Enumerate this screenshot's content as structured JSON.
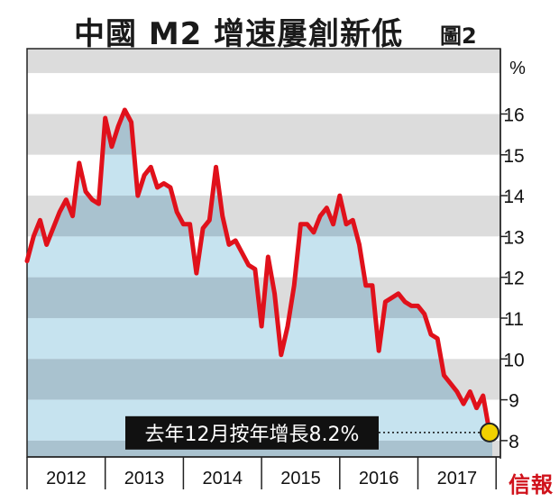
{
  "header": {
    "title": "中國 M2 增速屢創新低",
    "figure_label": "圖2"
  },
  "logo": {
    "text": "信報"
  },
  "colors": {
    "line": "#e0111b",
    "band_dark": "#dcdcdc",
    "band_light": "#ffffff",
    "area_dark": "#a9c2cf",
    "area_light": "#c6e3ef",
    "highlight_fill": "#f2d100",
    "annotation_bg": "#111111"
  },
  "chart_data": {
    "type": "area",
    "title": "中國 M2 增速屢創新低",
    "y_unit": "%",
    "ylim": [
      7.6,
      17.6
    ],
    "y_ticks": [
      8,
      9,
      10,
      11,
      12,
      13,
      14,
      15,
      16
    ],
    "year_labels": [
      "2012",
      "2013",
      "2014",
      "2015",
      "2016",
      "2017"
    ],
    "x_start": "2012-01",
    "x_end": "2017-12",
    "grid": "horizontal-bands",
    "series": [
      {
        "values": [
          12.4,
          13.0,
          13.4,
          12.8,
          13.2,
          13.6,
          13.9,
          13.5,
          14.8,
          14.1,
          13.9,
          13.8,
          15.9,
          15.2,
          15.7,
          16.1,
          15.8,
          14.0,
          14.5,
          14.7,
          14.2,
          14.3,
          14.2,
          13.6,
          13.3,
          13.3,
          12.1,
          13.2,
          13.4,
          14.7,
          13.5,
          12.8,
          12.9,
          12.6,
          12.3,
          12.2,
          10.8,
          12.5,
          11.6,
          10.1,
          10.8,
          11.8,
          13.3,
          13.3,
          13.1,
          13.5,
          13.7,
          13.3,
          14.0,
          13.3,
          13.4,
          12.8,
          11.8,
          11.8,
          10.2,
          11.4,
          11.5,
          11.6,
          11.4,
          11.3,
          11.3,
          11.1,
          10.6,
          10.5,
          9.6,
          9.4,
          9.2,
          8.9,
          9.2,
          8.8,
          9.1,
          8.2
        ]
      }
    ],
    "annotation": {
      "text": "去年12月按年增長8.2%",
      "value": 8.2,
      "period": "2017-12"
    }
  }
}
